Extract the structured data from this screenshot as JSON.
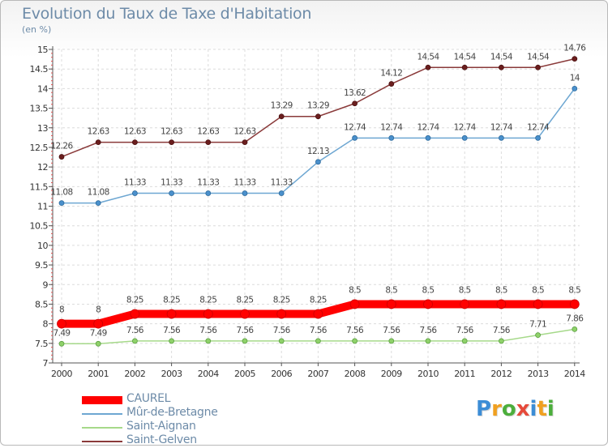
{
  "header": {
    "title": "Evolution du Taux de Taxe d'Habitation",
    "subtitle": "(en %)"
  },
  "logo": {
    "letters": [
      "P",
      "r",
      "o",
      "x",
      "i",
      "t",
      "i"
    ],
    "colors": [
      "#3c8dd6",
      "#f0a020",
      "#4cae3c",
      "#e64a3a",
      "#3c8dd6",
      "#f0a020",
      "#4cae3c"
    ]
  },
  "chart_data": {
    "type": "line",
    "title": "Evolution du Taux de Taxe d'Habitation",
    "ylabel": "(en %)",
    "xlabel": "",
    "x": [
      "2000",
      "2001",
      "2002",
      "2003",
      "2004",
      "2005",
      "2006",
      "2007",
      "2008",
      "2009",
      "2010",
      "2011",
      "2012",
      "2013",
      "2014"
    ],
    "ylim": [
      7,
      15
    ],
    "yticks": [
      7,
      7.5,
      8,
      8.5,
      9,
      9.5,
      10,
      10.5,
      11,
      11.5,
      12,
      12.5,
      13,
      13.5,
      14,
      14.5,
      15
    ],
    "ytick_labels": [
      "7",
      "7.5",
      "8",
      "8.5",
      "9",
      "9.5",
      "10",
      "10.5",
      "11",
      "11.5",
      "12",
      "12.5",
      "13",
      "13.5",
      "14",
      "14.5",
      "15"
    ],
    "grid": true,
    "legend": "bottom-left",
    "series": [
      {
        "name": "CAUREL",
        "color": "#ff0000",
        "values": [
          8,
          8,
          8.25,
          8.25,
          8.25,
          8.25,
          8.25,
          8.25,
          8.5,
          8.5,
          8.5,
          8.5,
          8.5,
          8.5,
          8.5
        ],
        "labels": [
          "8",
          "8",
          "8.25",
          "8.25",
          "8.25",
          "8.25",
          "8.25",
          "8.25",
          "8.5",
          "8.5",
          "8.5",
          "8.5",
          "8.5",
          "8.5",
          "8.5"
        ]
      },
      {
        "name": "Mûr-de-Bretagne",
        "color": "#6ea7d2",
        "values": [
          11.08,
          11.08,
          11.33,
          11.33,
          11.33,
          11.33,
          11.33,
          12.13,
          12.74,
          12.74,
          12.74,
          12.74,
          12.74,
          12.74,
          14
        ],
        "labels": [
          "11.08",
          "11.08",
          "11.33",
          "11.33",
          "11.33",
          "11.33",
          "11.33",
          "12.13",
          "12.74",
          "12.74",
          "12.74",
          "12.74",
          "12.74",
          "12.74",
          "14"
        ]
      },
      {
        "name": "Saint-Aignan",
        "color": "#a6d98a",
        "values": [
          7.49,
          7.49,
          7.56,
          7.56,
          7.56,
          7.56,
          7.56,
          7.56,
          7.56,
          7.56,
          7.56,
          7.56,
          7.56,
          7.71,
          7.86
        ],
        "labels": [
          "7.49",
          "7.49",
          "7.56",
          "7.56",
          "7.56",
          "7.56",
          "7.56",
          "7.56",
          "7.56",
          "7.56",
          "7.56",
          "7.56",
          "7.56",
          "7.71",
          "7.86"
        ]
      },
      {
        "name": "Saint-Gelven",
        "color": "#8a3a3a",
        "values": [
          12.26,
          12.63,
          12.63,
          12.63,
          12.63,
          12.63,
          13.29,
          13.29,
          13.62,
          14.12,
          14.54,
          14.54,
          14.54,
          14.54,
          14.76
        ],
        "labels": [
          "12.26",
          "12.63",
          "12.63",
          "12.63",
          "12.63",
          "12.63",
          "13.29",
          "13.29",
          "13.62",
          "14.12",
          "14.54",
          "14.54",
          "14.54",
          "14.54",
          "14.76"
        ]
      }
    ]
  }
}
